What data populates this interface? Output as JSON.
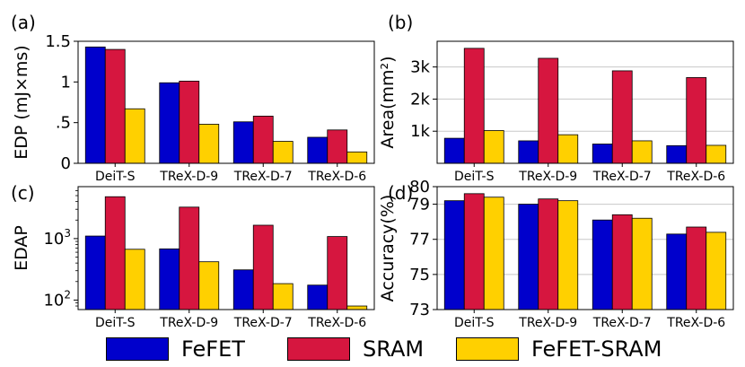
{
  "legend": {
    "items": [
      {
        "label": "FeFET",
        "color": "#0000cc"
      },
      {
        "label": "SRAM",
        "color": "#d6163f"
      },
      {
        "label": "FeFET-SRAM",
        "color": "#ffd000"
      }
    ]
  },
  "chart_data": [
    {
      "id": "a",
      "panel_label": "(a)",
      "type": "bar",
      "scale": "linear",
      "ylabel": "EDP (mJ×ms)",
      "categories": [
        "DeiT-S",
        "TReX-D-9",
        "TReX-D-7",
        "TReX-D-6"
      ],
      "ylim": [
        0,
        1.5
      ],
      "yticks": [
        0,
        0.5,
        1,
        1.5
      ],
      "ytick_labels": [
        "0",
        ".5",
        "1",
        "1.5"
      ],
      "grid": false,
      "series": [
        {
          "name": "FeFET",
          "values": [
            1.43,
            0.99,
            0.51,
            0.32
          ]
        },
        {
          "name": "SRAM",
          "values": [
            1.4,
            1.01,
            0.58,
            0.41
          ]
        },
        {
          "name": "FeFET-SRAM",
          "values": [
            0.67,
            0.48,
            0.27,
            0.14
          ]
        }
      ]
    },
    {
      "id": "b",
      "panel_label": "(b)",
      "type": "bar",
      "scale": "linear",
      "ylabel": "Area(mm²)",
      "categories": [
        "DeiT-S",
        "TReX-D-9",
        "TReX-D-7",
        "TReX-D-6"
      ],
      "ylim": [
        0,
        3800
      ],
      "yticks": [
        1000,
        2000,
        3000
      ],
      "ytick_labels": [
        "1k",
        "2k",
        "3k"
      ],
      "grid": true,
      "series": [
        {
          "name": "FeFET",
          "values": [
            780,
            700,
            600,
            550
          ]
        },
        {
          "name": "SRAM",
          "values": [
            3580,
            3270,
            2880,
            2670
          ]
        },
        {
          "name": "FeFET-SRAM",
          "values": [
            1020,
            890,
            700,
            560
          ]
        }
      ]
    },
    {
      "id": "c",
      "panel_label": "(c)",
      "type": "bar",
      "scale": "log",
      "ylabel": "EDAP",
      "categories": [
        "DeiT-S",
        "TReX-D-9",
        "TReX-D-7",
        "TReX-D-6"
      ],
      "ylim": [
        70,
        7000
      ],
      "yticks": [
        100,
        1000
      ],
      "ytick_labels": [
        "10^2",
        "10^3"
      ],
      "grid": false,
      "series": [
        {
          "name": "FeFET",
          "values": [
            1100,
            680,
            310,
            175
          ]
        },
        {
          "name": "SRAM",
          "values": [
            4800,
            3250,
            1650,
            1080
          ]
        },
        {
          "name": "FeFET-SRAM",
          "values": [
            670,
            420,
            185,
            80
          ]
        }
      ]
    },
    {
      "id": "d",
      "panel_label": "(d)",
      "type": "bar",
      "scale": "linear",
      "ylabel": "Accuracy(%)",
      "categories": [
        "DeiT-S",
        "TReX-D-9",
        "TReX-D-7",
        "TReX-D-6"
      ],
      "ylim": [
        73,
        80
      ],
      "yticks": [
        73,
        75,
        77,
        79,
        80
      ],
      "ytick_labels": [
        "73",
        "75",
        "77",
        "79",
        "80"
      ],
      "grid": true,
      "series": [
        {
          "name": "FeFET",
          "values": [
            79.2,
            79.0,
            78.1,
            77.3
          ]
        },
        {
          "name": "SRAM",
          "values": [
            79.6,
            79.3,
            78.4,
            77.7
          ]
        },
        {
          "name": "FeFET-SRAM",
          "values": [
            79.4,
            79.2,
            78.2,
            77.4
          ]
        }
      ]
    }
  ]
}
